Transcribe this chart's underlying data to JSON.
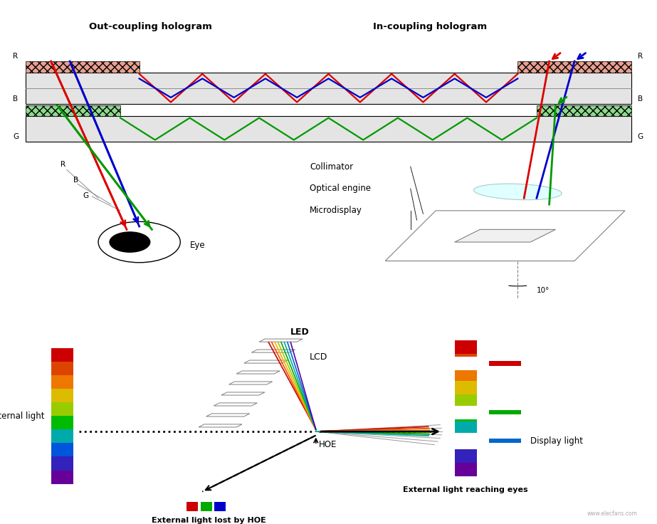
{
  "bg_color": "#ffffff",
  "top_title_left": "Out-coupling hologram",
  "top_title_right": "In-coupling hologram",
  "red_color": "#dd0000",
  "blue_color": "#0000cc",
  "green_color": "#009900",
  "hatch_red": "#e8a090",
  "hatch_green": "#90d890",
  "collimator_label": "Collimator",
  "optical_engine_label": "Optical engine",
  "microdisplay_label": "Microdisplay",
  "eye_label": "Eye",
  "angle_label": "10°",
  "led_label": "LED",
  "lcd_label": "LCD",
  "hoe_label": "HOE",
  "external_light_label": "External light",
  "external_light_reaching_label": "External light reaching eyes",
  "external_light_lost_label": "External light lost by HOE",
  "display_light_label": "Display light"
}
